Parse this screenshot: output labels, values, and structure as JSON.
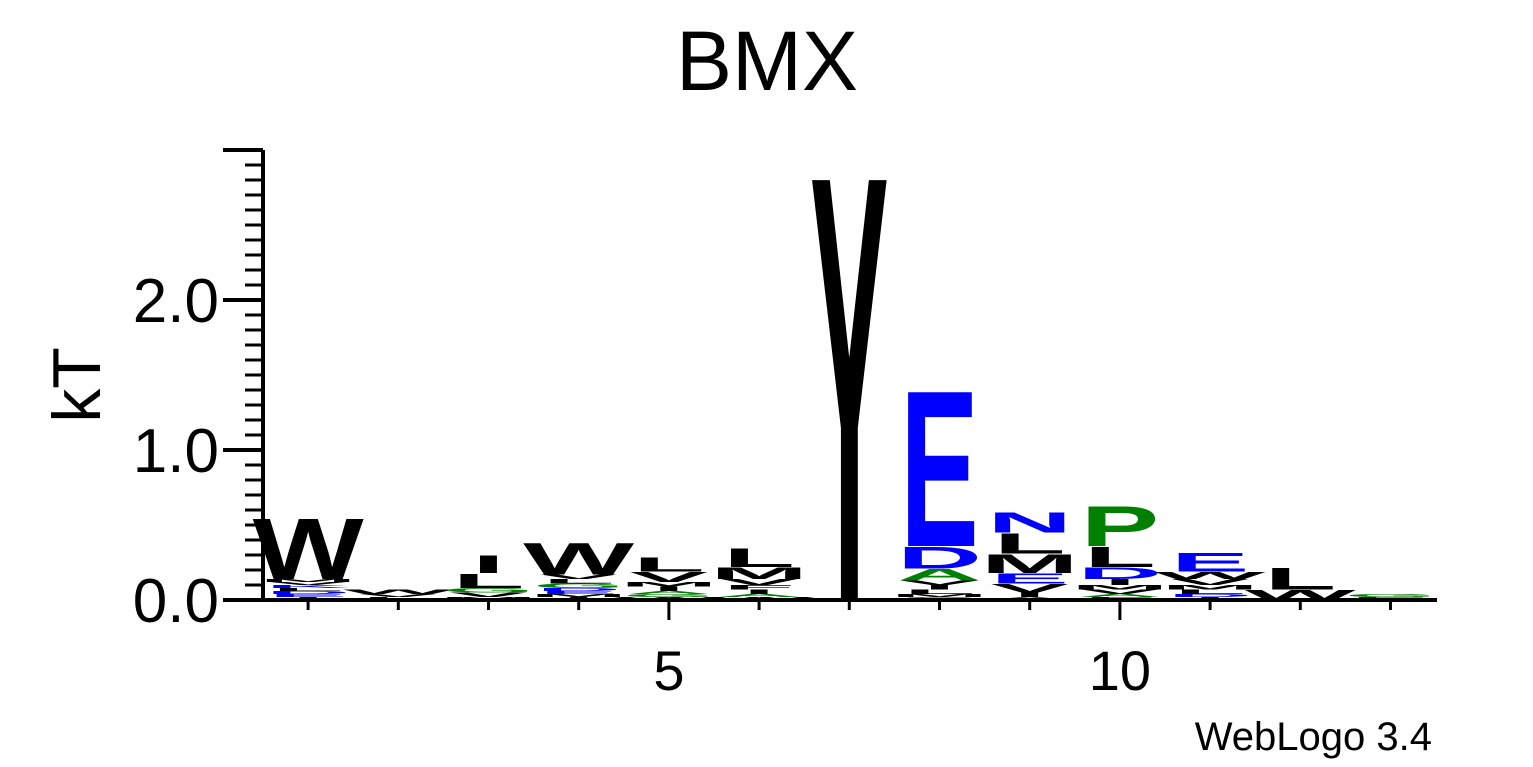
{
  "chart_data": {
    "type": "sequence-logo",
    "title": "BMX",
    "ylabel": "kT",
    "xlabel": "",
    "ylim": [
      0,
      3.0
    ],
    "yticks": [
      0.0,
      1.0,
      2.0
    ],
    "ytick_labels": [
      "0.0",
      "1.0",
      "2.0"
    ],
    "xticks": [
      5,
      10
    ],
    "xtick_labels": [
      "5",
      "10"
    ],
    "positions": [
      1,
      2,
      3,
      4,
      5,
      6,
      7,
      8,
      9,
      10,
      11,
      12,
      13
    ],
    "credit": "WebLogo 3.4",
    "colors": {
      "black": "#000000",
      "blue": "#0000ff",
      "green": "#008000",
      "axis": "#000000"
    },
    "stacks": [
      {
        "position": 1,
        "letters": [
          {
            "letter": "W",
            "color": "black",
            "height": 0.42
          },
          {
            "letter": "I",
            "color": "black",
            "height": 0.02
          },
          {
            "letter": "E",
            "color": "blue",
            "height": 0.02
          },
          {
            "letter": "D",
            "color": "blue",
            "height": 0.02
          },
          {
            "letter": "L",
            "color": "black",
            "height": 0.02
          },
          {
            "letter": "K",
            "color": "blue",
            "height": 0.02
          },
          {
            "letter": "V",
            "color": "black",
            "height": 0.02
          },
          {
            "letter": "M",
            "color": "black",
            "height": 0.02
          }
        ]
      },
      {
        "position": 2,
        "letters": [
          {
            "letter": "W",
            "color": "black",
            "height": 0.03
          },
          {
            "letter": "L",
            "color": "black",
            "height": 0.02
          },
          {
            "letter": "V",
            "color": "black",
            "height": 0.02
          }
        ]
      },
      {
        "position": 3,
        "letters": [
          {
            "letter": "I",
            "color": "black",
            "height": 0.12
          },
          {
            "letter": "L",
            "color": "black",
            "height": 0.1
          },
          {
            "letter": "V",
            "color": "black",
            "height": 0.03
          },
          {
            "letter": "G",
            "color": "green",
            "height": 0.03
          },
          {
            "letter": "M",
            "color": "black",
            "height": 0.02
          }
        ]
      },
      {
        "position": 4,
        "letters": [
          {
            "letter": "W",
            "color": "black",
            "height": 0.22
          },
          {
            "letter": "G",
            "color": "green",
            "height": 0.03
          },
          {
            "letter": "L",
            "color": "black",
            "height": 0.03
          },
          {
            "letter": "V",
            "color": "black",
            "height": 0.03
          },
          {
            "letter": "I",
            "color": "black",
            "height": 0.02
          },
          {
            "letter": "M",
            "color": "black",
            "height": 0.02
          },
          {
            "letter": "E",
            "color": "blue",
            "height": 0.02
          },
          {
            "letter": "D",
            "color": "blue",
            "height": 0.02
          }
        ]
      },
      {
        "position": 5,
        "letters": [
          {
            "letter": "L",
            "color": "black",
            "height": 0.1
          },
          {
            "letter": "V",
            "color": "black",
            "height": 0.07
          },
          {
            "letter": "I",
            "color": "black",
            "height": 0.03
          },
          {
            "letter": "M",
            "color": "black",
            "height": 0.03
          },
          {
            "letter": "W",
            "color": "black",
            "height": 0.02
          },
          {
            "letter": "G",
            "color": "green",
            "height": 0.02
          },
          {
            "letter": "A",
            "color": "green",
            "height": 0.02
          }
        ]
      },
      {
        "position": 6,
        "letters": [
          {
            "letter": "L",
            "color": "black",
            "height": 0.13
          },
          {
            "letter": "M",
            "color": "black",
            "height": 0.08
          },
          {
            "letter": "V",
            "color": "black",
            "height": 0.04
          },
          {
            "letter": "I",
            "color": "black",
            "height": 0.03
          },
          {
            "letter": "F",
            "color": "black",
            "height": 0.03
          },
          {
            "letter": "W",
            "color": "black",
            "height": 0.02
          },
          {
            "letter": "A",
            "color": "green",
            "height": 0.02
          }
        ]
      },
      {
        "position": 7,
        "letters": [
          {
            "letter": "Y",
            "color": "black",
            "height": 2.95
          }
        ]
      },
      {
        "position": 8,
        "letters": [
          {
            "letter": "E",
            "color": "blue",
            "height": 1.08
          },
          {
            "letter": "D",
            "color": "blue",
            "height": 0.15
          },
          {
            "letter": "A",
            "color": "green",
            "height": 0.08
          },
          {
            "letter": "L",
            "color": "black",
            "height": 0.03
          },
          {
            "letter": "I",
            "color": "black",
            "height": 0.03
          },
          {
            "letter": "V",
            "color": "black",
            "height": 0.03
          },
          {
            "letter": "S",
            "color": "green",
            "height": 0.02
          },
          {
            "letter": "M",
            "color": "black",
            "height": 0.02
          }
        ]
      },
      {
        "position": 9,
        "letters": [
          {
            "letter": "L",
            "color": "black",
            "height": 0.14
          },
          {
            "letter": "N",
            "color": "blue",
            "height": 0.14
          },
          {
            "letter": "M",
            "color": "black",
            "height": 0.13
          },
          {
            "letter": "E",
            "color": "blue",
            "height": 0.07
          },
          {
            "letter": "V",
            "color": "black",
            "height": 0.06
          },
          {
            "letter": "I",
            "color": "black",
            "height": 0.03
          },
          {
            "letter": "A",
            "color": "green",
            "height": 0.02
          }
        ]
      },
      {
        "position": 10,
        "letters": [
          {
            "letter": "P",
            "color": "green",
            "height": 0.28
          },
          {
            "letter": "L",
            "color": "black",
            "height": 0.14
          },
          {
            "letter": "D",
            "color": "blue",
            "height": 0.08
          },
          {
            "letter": "I",
            "color": "black",
            "height": 0.04
          },
          {
            "letter": "V",
            "color": "black",
            "height": 0.03
          },
          {
            "letter": "M",
            "color": "black",
            "height": 0.03
          },
          {
            "letter": "F",
            "color": "black",
            "height": 0.02
          },
          {
            "letter": "A",
            "color": "green",
            "height": 0.02
          }
        ]
      },
      {
        "position": 11,
        "letters": [
          {
            "letter": "E",
            "color": "blue",
            "height": 0.13
          },
          {
            "letter": "W",
            "color": "black",
            "height": 0.05
          },
          {
            "letter": "V",
            "color": "black",
            "height": 0.04
          },
          {
            "letter": "L",
            "color": "black",
            "height": 0.03
          },
          {
            "letter": "M",
            "color": "black",
            "height": 0.03
          },
          {
            "letter": "I",
            "color": "black",
            "height": 0.02
          },
          {
            "letter": "D",
            "color": "blue",
            "height": 0.02
          }
        ]
      },
      {
        "position": 12,
        "letters": [
          {
            "letter": "L",
            "color": "black",
            "height": 0.15
          },
          {
            "letter": "W",
            "color": "black",
            "height": 0.07
          }
        ]
      },
      {
        "position": 13,
        "letters": [
          {
            "letter": "E",
            "color": "blue",
            "height": 0.02
          },
          {
            "letter": "G",
            "color": "green",
            "height": 0.02
          }
        ]
      }
    ]
  }
}
